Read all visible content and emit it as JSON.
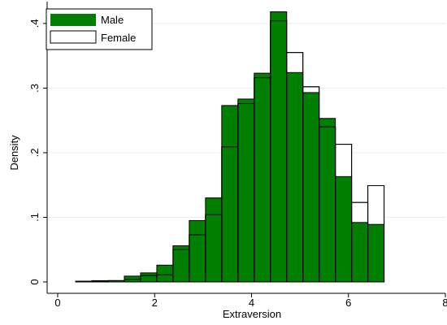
{
  "chart_data": {
    "type": "bar",
    "subtype": "overlaid-histogram",
    "title": "",
    "xlabel": "Extraversion",
    "ylabel": "Density",
    "xlim": [
      0,
      8
    ],
    "ylim": [
      0,
      0.43
    ],
    "x_ticks": [
      0,
      2,
      4,
      6,
      8
    ],
    "x_tick_labels": [
      "0",
      "2",
      "4",
      "6",
      "8"
    ],
    "y_ticks": [
      0,
      0.1,
      0.2,
      0.3,
      0.4
    ],
    "y_tick_labels": [
      "0",
      ".1",
      ".2",
      ".3",
      ".4"
    ],
    "grid": "horizontal",
    "legend_position": "top-left",
    "bin_edges": [
      0.37,
      0.705,
      1.04,
      1.375,
      1.71,
      2.045,
      2.38,
      2.715,
      3.05,
      3.385,
      3.72,
      4.055,
      4.39,
      4.725,
      5.06,
      5.395,
      5.73,
      6.065,
      6.4,
      6.735,
      7.07
    ],
    "series": [
      {
        "name": "Male",
        "fill": "#007F00",
        "stroke": "#000000",
        "values": [
          0.001,
          0.002,
          0.002,
          0.009,
          0.014,
          0.026,
          0.056,
          0.095,
          0.13,
          0.273,
          0.283,
          0.323,
          0.418,
          0.324,
          0.293,
          0.253,
          0.163,
          0.092,
          0.089,
          0.0
        ]
      },
      {
        "name": "Female",
        "fill": "none",
        "stroke": "#000000",
        "values": [
          0.001,
          0.001,
          0.002,
          0.004,
          0.01,
          0.011,
          0.05,
          0.073,
          0.104,
          0.209,
          0.276,
          0.316,
          0.404,
          0.355,
          0.302,
          0.24,
          0.213,
          0.123,
          0.149,
          0.0
        ]
      }
    ]
  }
}
